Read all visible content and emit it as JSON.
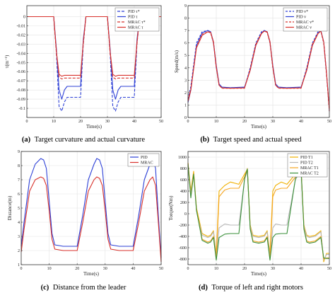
{
  "chart_data": [
    {
      "id": "a",
      "type": "line",
      "caption_letter": "(a)",
      "caption": "Target curvature and actual curvature",
      "xlabel": "Time(s)",
      "ylabel": "τ(m⁻¹)",
      "xlim": [
        0,
        50
      ],
      "ylim": [
        -0.11,
        0.012
      ],
      "xticks": [
        0,
        10,
        20,
        30,
        40,
        50
      ],
      "yticks": [
        0,
        -0.01,
        -0.02,
        -0.03,
        -0.04,
        -0.05,
        -0.06,
        -0.07,
        -0.08,
        -0.09,
        -0.1
      ],
      "yticklabels": [
        "0",
        "-0.01",
        "-0.02",
        "-0.03",
        "-0.04",
        "-0.05",
        "-0.06",
        "-0.07",
        "-0.08",
        "-0.09",
        "-0.1"
      ],
      "grid": true,
      "legend_position": "top-right",
      "series": [
        {
          "name": "PID τ*",
          "color": "#2c3fd6",
          "dash": "4,2",
          "x": [
            0,
            10,
            11,
            12,
            13,
            14,
            15,
            16,
            17,
            18,
            19,
            20,
            21,
            22,
            30,
            31,
            32,
            33,
            34,
            35,
            36,
            37,
            38,
            39,
            40,
            41,
            42,
            50
          ],
          "y": [
            0,
            0,
            -0.04,
            -0.098,
            -0.103,
            -0.093,
            -0.088,
            -0.088,
            -0.088,
            -0.088,
            -0.088,
            -0.088,
            -0.03,
            0,
            0,
            -0.04,
            -0.098,
            -0.103,
            -0.093,
            -0.088,
            -0.088,
            -0.088,
            -0.088,
            -0.088,
            -0.088,
            -0.03,
            0,
            0
          ]
        },
        {
          "name": "PID τ",
          "color": "#2c3fd6",
          "dash": "",
          "x": [
            0,
            10,
            11,
            12,
            13,
            14,
            15,
            16,
            17,
            18,
            19,
            20,
            21,
            22,
            30,
            31,
            32,
            33,
            34,
            35,
            36,
            37,
            38,
            39,
            40,
            41,
            42,
            50
          ],
          "y": [
            0,
            0,
            -0.035,
            -0.08,
            -0.09,
            -0.08,
            -0.076,
            -0.076,
            -0.076,
            -0.076,
            -0.076,
            -0.076,
            -0.025,
            0,
            0,
            -0.035,
            -0.08,
            -0.09,
            -0.08,
            -0.076,
            -0.076,
            -0.076,
            -0.076,
            -0.076,
            -0.076,
            -0.025,
            0,
            0
          ]
        },
        {
          "name": "MRAC τ*",
          "color": "#d8322c",
          "dash": "4,2",
          "x": [
            0,
            10,
            11,
            12,
            13,
            14,
            20,
            21,
            22,
            30,
            31,
            32,
            33,
            34,
            40,
            41,
            42,
            50
          ],
          "y": [
            0,
            0,
            -0.04,
            -0.066,
            -0.068,
            -0.067,
            -0.067,
            -0.03,
            0,
            0,
            -0.04,
            -0.066,
            -0.068,
            -0.067,
            -0.067,
            -0.03,
            0,
            0
          ]
        },
        {
          "name": "MRAC τ",
          "color": "#d8322c",
          "dash": "",
          "x": [
            0,
            10,
            11,
            12,
            13,
            14,
            20,
            21,
            22,
            30,
            31,
            32,
            33,
            34,
            40,
            41,
            42,
            50
          ],
          "y": [
            0,
            0,
            -0.038,
            -0.063,
            -0.065,
            -0.064,
            -0.064,
            -0.028,
            0,
            0,
            -0.038,
            -0.063,
            -0.065,
            -0.064,
            -0.064,
            -0.028,
            0,
            0
          ]
        }
      ]
    },
    {
      "id": "b",
      "type": "line",
      "caption_letter": "(b)",
      "caption": "Target speed and actual speed",
      "xlabel": "Time(s)",
      "ylabel": "Speed(m/s)",
      "xlim": [
        0,
        50
      ],
      "ylim": [
        0,
        9
      ],
      "xticks": [
        0,
        10,
        20,
        30,
        40,
        50
      ],
      "yticks": [
        0,
        1,
        2,
        3,
        4,
        5,
        6,
        7,
        8,
        9
      ],
      "yticklabels": [
        "0",
        "1",
        "2",
        "3",
        "4",
        "5",
        "6",
        "7",
        "8",
        "9"
      ],
      "grid": true,
      "legend_position": "top-right",
      "series": [
        {
          "name": "PID v*",
          "color": "#2c3fd6",
          "dash": "3,2",
          "x": [
            0,
            1,
            3,
            5,
            7,
            8,
            9,
            10,
            11,
            12,
            15,
            20,
            22,
            24,
            26,
            27,
            28,
            29,
            30,
            31,
            32,
            35,
            40,
            42,
            44,
            46,
            47,
            48,
            49,
            50
          ],
          "y": [
            1.5,
            2.5,
            6.0,
            6.9,
            7.0,
            6.9,
            6.0,
            4.0,
            2.6,
            2.4,
            2.4,
            2.4,
            4.0,
            6.0,
            6.9,
            7.0,
            6.9,
            6.0,
            4.0,
            2.6,
            2.4,
            2.4,
            2.4,
            4.0,
            6.0,
            6.9,
            7.0,
            6.0,
            3.5,
            0.5
          ]
        },
        {
          "name": "PID v",
          "color": "#2c3fd6",
          "dash": "",
          "x": [
            0,
            1,
            3,
            5,
            7,
            8,
            9,
            10,
            11,
            12,
            15,
            20,
            22,
            24,
            26,
            27,
            28,
            29,
            30,
            31,
            32,
            35,
            40,
            42,
            44,
            46,
            47,
            48,
            49,
            50
          ],
          "y": [
            1.2,
            2.2,
            5.8,
            6.8,
            7.0,
            6.9,
            6.1,
            4.2,
            2.7,
            2.45,
            2.4,
            2.45,
            3.8,
            5.8,
            6.8,
            7.0,
            6.9,
            6.1,
            4.2,
            2.7,
            2.45,
            2.4,
            2.45,
            3.8,
            5.8,
            6.8,
            7.0,
            6.1,
            3.6,
            0.6
          ]
        },
        {
          "name": "MRAC v*",
          "color": "#d8322c",
          "dash": "3,2",
          "x": [
            0,
            1,
            3,
            5,
            7,
            8,
            9,
            10,
            11,
            12,
            15,
            20,
            22,
            24,
            26,
            27,
            28,
            29,
            30,
            31,
            32,
            35,
            40,
            42,
            44,
            46,
            47,
            48,
            49,
            50
          ],
          "y": [
            1.4,
            2.3,
            5.7,
            6.7,
            6.9,
            6.8,
            6.0,
            4.0,
            2.6,
            2.35,
            2.35,
            2.35,
            3.9,
            5.9,
            6.8,
            6.95,
            6.85,
            6.0,
            4.0,
            2.6,
            2.35,
            2.35,
            2.35,
            3.9,
            5.9,
            6.8,
            6.95,
            6.0,
            3.5,
            0.5
          ]
        },
        {
          "name": "MRAC v",
          "color": "#d8322c",
          "dash": "",
          "x": [
            0,
            1,
            3,
            5,
            7,
            8,
            9,
            10,
            11,
            12,
            15,
            20,
            22,
            24,
            26,
            27,
            28,
            29,
            30,
            31,
            32,
            35,
            40,
            42,
            44,
            46,
            47,
            48,
            49,
            50
          ],
          "y": [
            1.3,
            2.2,
            5.6,
            6.6,
            6.9,
            6.85,
            6.1,
            4.1,
            2.6,
            2.38,
            2.35,
            2.38,
            3.8,
            5.8,
            6.75,
            6.95,
            6.9,
            6.1,
            4.1,
            2.6,
            2.38,
            2.35,
            2.38,
            3.8,
            5.8,
            6.75,
            6.95,
            6.1,
            3.6,
            0.6
          ]
        }
      ]
    },
    {
      "id": "c",
      "type": "line",
      "caption_letter": "(c)",
      "caption": "Distance from the leader",
      "xlabel": "Time(s)",
      "ylabel": "Distance(m)",
      "xlim": [
        0,
        50
      ],
      "ylim": [
        1,
        9
      ],
      "xticks": [
        0,
        10,
        20,
        30,
        40,
        50
      ],
      "yticks": [
        1,
        2,
        3,
        4,
        5,
        6,
        7,
        8,
        9
      ],
      "yticklabels": [
        "1",
        "2",
        "3",
        "4",
        "5",
        "6",
        "7",
        "8",
        "9"
      ],
      "grid": true,
      "legend_position": "top-right",
      "series": [
        {
          "name": "PID",
          "color": "#2c3fd6",
          "dash": "",
          "x": [
            0,
            1,
            3,
            5,
            7,
            8,
            9,
            10,
            11,
            12,
            15,
            20,
            22,
            24,
            26,
            27,
            28,
            29,
            30,
            31,
            32,
            35,
            40,
            42,
            44,
            46,
            47,
            48,
            49,
            50
          ],
          "y": [
            2.3,
            4.0,
            7.0,
            8.1,
            8.5,
            8.4,
            7.8,
            5.5,
            3.2,
            2.4,
            2.3,
            2.3,
            4.5,
            7.0,
            8.1,
            8.5,
            8.4,
            7.8,
            5.5,
            3.2,
            2.4,
            2.3,
            2.3,
            4.5,
            7.0,
            8.1,
            8.5,
            7.8,
            4.5,
            1.5
          ]
        },
        {
          "name": "MRAC",
          "color": "#d8322c",
          "dash": "",
          "x": [
            0,
            1,
            3,
            5,
            7,
            8,
            9,
            10,
            11,
            12,
            15,
            20,
            22,
            24,
            26,
            27,
            28,
            29,
            30,
            31,
            32,
            35,
            40,
            42,
            44,
            46,
            47,
            48,
            49,
            50
          ],
          "y": [
            1.9,
            3.5,
            6.2,
            7.0,
            7.2,
            7.1,
            6.6,
            4.8,
            2.8,
            2.1,
            2.0,
            2.0,
            4.0,
            6.2,
            7.0,
            7.2,
            7.1,
            6.6,
            4.8,
            2.8,
            2.1,
            2.0,
            2.0,
            4.0,
            6.2,
            7.0,
            7.2,
            6.6,
            4.0,
            1.2
          ]
        }
      ]
    },
    {
      "id": "d",
      "type": "line",
      "caption_letter": "(d)",
      "caption": "Torque of left and right motors",
      "xlabel": "Time(s)",
      "ylabel": "Torque(Nm)",
      "xlim": [
        0,
        50
      ],
      "ylim": [
        -900,
        1100
      ],
      "xticks": [
        0,
        10,
        20,
        30,
        40,
        50
      ],
      "yticks": [
        1000,
        800,
        600,
        400,
        200,
        0,
        -200,
        -400,
        -600,
        -800
      ],
      "yticklabels": [
        "1000",
        "800",
        "600",
        "400",
        "200",
        "0",
        "-200",
        "-400",
        "-600",
        "-800"
      ],
      "grid": true,
      "legend_position": "top-right",
      "series": [
        {
          "name": "PID T1",
          "color": "#f0b000",
          "dash": "",
          "x": [
            0,
            1,
            2,
            3,
            5,
            7,
            8,
            9,
            10,
            11,
            13,
            15,
            18,
            20,
            21,
            22,
            23,
            25,
            27,
            28,
            29,
            30,
            31,
            33,
            35,
            38,
            40,
            41,
            42,
            43,
            45,
            47,
            48,
            49,
            50
          ],
          "y": [
            900,
            400,
            750,
            100,
            -350,
            -400,
            -380,
            -300,
            -700,
            400,
            500,
            560,
            520,
            700,
            780,
            -200,
            -380,
            -400,
            -380,
            -300,
            -700,
            400,
            500,
            560,
            520,
            700,
            780,
            -200,
            -380,
            -400,
            -380,
            -300,
            -850,
            -700,
            -700
          ]
        },
        {
          "name": "PID T2",
          "color": "#b8b8b8",
          "dash": "",
          "x": [
            0,
            1,
            2,
            3,
            5,
            7,
            8,
            9,
            10,
            11,
            13,
            15,
            18,
            20,
            21,
            22,
            23,
            25,
            27,
            28,
            29,
            30,
            31,
            33,
            35,
            38,
            40,
            41,
            42,
            43,
            45,
            47,
            48,
            49,
            50
          ],
          "y": [
            850,
            350,
            700,
            50,
            -380,
            -420,
            -400,
            -320,
            -760,
            -250,
            -180,
            -200,
            -200,
            600,
            760,
            -220,
            -400,
            -420,
            -400,
            -320,
            -760,
            -250,
            -180,
            -200,
            -200,
            600,
            760,
            -220,
            -400,
            -420,
            -400,
            -320,
            -820,
            -720,
            -720
          ]
        },
        {
          "name": "MRAC T1",
          "color": "#f5a623",
          "dash": "",
          "x": [
            0,
            1,
            2,
            3,
            5,
            7,
            8,
            9,
            10,
            11,
            13,
            15,
            18,
            20,
            21,
            22,
            23,
            25,
            27,
            28,
            29,
            30,
            31,
            33,
            35,
            38,
            40,
            41,
            42,
            43,
            45,
            47,
            48,
            49,
            50
          ],
          "y": [
            900,
            300,
            720,
            80,
            -450,
            -500,
            -480,
            -400,
            -800,
            300,
            420,
            450,
            450,
            650,
            800,
            -250,
            -480,
            -500,
            -480,
            -400,
            -800,
            300,
            420,
            450,
            450,
            650,
            800,
            -250,
            -480,
            -500,
            -480,
            -400,
            -800,
            -780,
            -780
          ]
        },
        {
          "name": "MRAC T2",
          "color": "#3a8f3a",
          "dash": "",
          "x": [
            0,
            1,
            2,
            3,
            5,
            7,
            8,
            9,
            10,
            11,
            13,
            15,
            18,
            20,
            21,
            22,
            23,
            25,
            27,
            28,
            29,
            30,
            31,
            33,
            35,
            38,
            40,
            41,
            42,
            43,
            45,
            47,
            48,
            49,
            50
          ],
          "y": [
            880,
            280,
            700,
            60,
            -470,
            -520,
            -500,
            -420,
            -820,
            -420,
            -360,
            -350,
            -350,
            620,
            790,
            -270,
            -500,
            -520,
            -500,
            -420,
            -820,
            -420,
            -360,
            -350,
            -350,
            620,
            790,
            -270,
            -500,
            -520,
            -500,
            -420,
            -780,
            -790,
            -790
          ]
        }
      ]
    }
  ]
}
